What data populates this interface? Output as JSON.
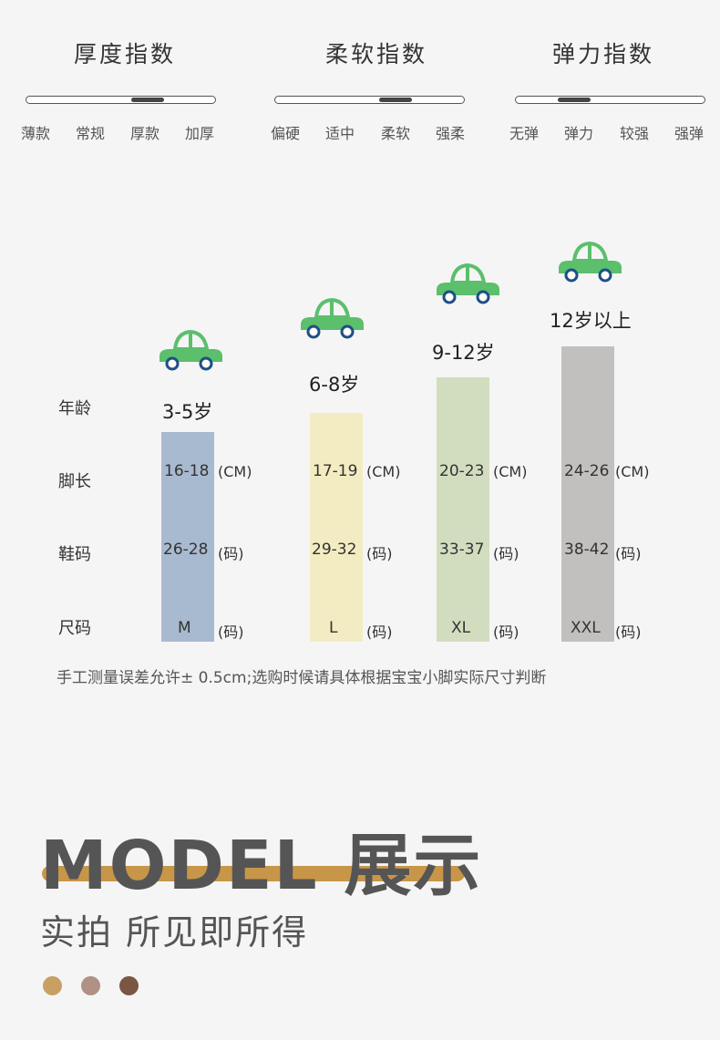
{
  "indices": [
    {
      "title": "厚度指数",
      "levels": [
        "薄款",
        "常规",
        "厚款",
        "加厚"
      ],
      "selected": 2
    },
    {
      "title": "柔软指数",
      "levels": [
        "偏硬",
        "适中",
        "柔软",
        "强柔"
      ],
      "selected": 2
    },
    {
      "title": "弹力指数",
      "levels": [
        "无弹",
        "弹力",
        "较强",
        "强弹"
      ],
      "selected": 1
    }
  ],
  "chart": {
    "row_labels": {
      "age": "年龄",
      "foot": "脚长",
      "shoe": "鞋码",
      "size": "尺码"
    },
    "units": {
      "cm": "(CM)",
      "ma": "(码)"
    },
    "columns": [
      {
        "age": "3-5岁",
        "foot": "16-18",
        "shoe": "26-28",
        "size": "M",
        "color": "#a8bad0"
      },
      {
        "age": "6-8岁",
        "foot": "17-19",
        "shoe": "29-32",
        "size": "L",
        "color": "#f3ecc2"
      },
      {
        "age": "9-12岁",
        "foot": "20-23",
        "shoe": "33-37",
        "size": "XL",
        "color": "#d2ddc0"
      },
      {
        "age": "12岁以上",
        "foot": "24-26",
        "shoe": "38-42",
        "size": "XXL",
        "color": "#c1c0be"
      }
    ],
    "car_color": "#5bbf6c",
    "wheel_color": "#1e4f86",
    "note": "手工测量误差允许± 0.5cm;选购时候请具体根据宝宝小脚实际尺寸判断"
  },
  "model": {
    "title": "MODEL 展示",
    "subtitle": "实拍 所见即所得",
    "underline_color": "#c89649",
    "dot_colors": [
      "#c9a063",
      "#b09184",
      "#7a5645"
    ]
  }
}
